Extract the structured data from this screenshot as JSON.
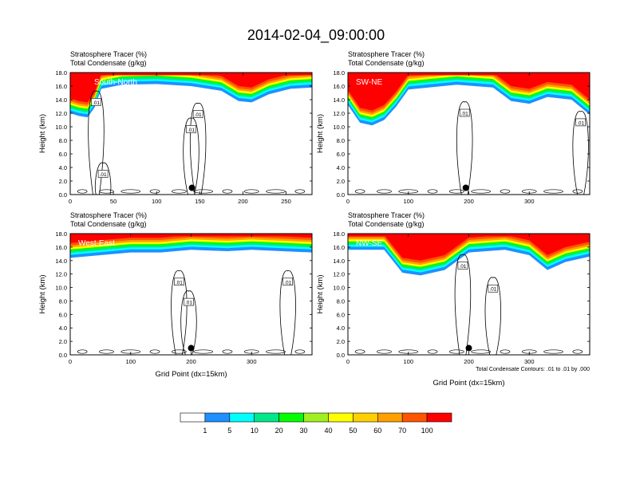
{
  "title": "2014-02-04_09:00:00",
  "panel_header": {
    "line1_label": "Stratosphere Tracer",
    "line1_unit": "(%)",
    "line2_label": "Total Condensate",
    "line2_unit": "(g/kg)"
  },
  "y_axis_label": "Height (km)",
  "x_axis_label": "Grid Point (dx=15km)",
  "contour_note": "Total Condensate Contours: .01 to .01 by .000",
  "colors": {
    "levels": [
      "#ffffff",
      "#1e90ff",
      "#00ffff",
      "#00e88a",
      "#00ff00",
      "#a0f020",
      "#ffff00",
      "#ffd000",
      "#ff9f00",
      "#ff5500",
      "#ff0000"
    ]
  },
  "colorbar": {
    "labels": [
      "1",
      "5",
      "10",
      "20",
      "30",
      "40",
      "50",
      "60",
      "70",
      "100"
    ]
  },
  "chart_data": [
    {
      "type": "heatmap",
      "name": "South-North",
      "xlim": [
        0,
        280
      ],
      "xticks": [
        0,
        50,
        100,
        150,
        200,
        250
      ],
      "ylim": [
        0,
        18
      ],
      "yticks": [
        "0.0",
        "2.0",
        "4.0",
        "6.0",
        "8.0",
        "10.0",
        "12.0",
        "14.0",
        "16.0",
        "18.0"
      ],
      "tracer_front_km": [
        [
          0,
          12.0
        ],
        [
          10,
          11.6
        ],
        [
          20,
          11.4
        ],
        [
          28,
          12.8
        ],
        [
          36,
          15.6
        ],
        [
          60,
          16.2
        ],
        [
          100,
          16.3
        ],
        [
          140,
          16.0
        ],
        [
          175,
          15.3
        ],
        [
          195,
          13.8
        ],
        [
          210,
          13.6
        ],
        [
          230,
          14.8
        ],
        [
          255,
          15.6
        ],
        [
          280,
          15.8
        ]
      ],
      "contour_labels": [
        {
          "x": 30,
          "y": 13.6,
          "text": ".01"
        },
        {
          "x": 148,
          "y": 11.8,
          "text": ".01"
        },
        {
          "x": 140,
          "y": 9.6,
          "text": ".01"
        },
        {
          "x": 38,
          "y": 3.0,
          "text": ".01"
        }
      ],
      "marker": {
        "x": 141,
        "y": 1.0
      }
    },
    {
      "type": "heatmap",
      "name": "SW-NE",
      "xlim": [
        0,
        400
      ],
      "xticks": [
        0,
        100,
        200,
        300
      ],
      "ylim": [
        0,
        18
      ],
      "yticks": [
        "0.0",
        "2.0",
        "4.0",
        "6.0",
        "8.0",
        "10.0",
        "12.0",
        "14.0",
        "16.0",
        "18.0"
      ],
      "tracer_front_km": [
        [
          0,
          13.2
        ],
        [
          20,
          10.6
        ],
        [
          40,
          10.2
        ],
        [
          60,
          11.0
        ],
        [
          80,
          13.0
        ],
        [
          100,
          15.5
        ],
        [
          180,
          16.2
        ],
        [
          240,
          15.8
        ],
        [
          270,
          13.8
        ],
        [
          300,
          13.4
        ],
        [
          330,
          14.4
        ],
        [
          370,
          14.0
        ],
        [
          400,
          11.8
        ]
      ],
      "contour_labels": [
        {
          "x": 193,
          "y": 12.0,
          "text": ".01"
        },
        {
          "x": 385,
          "y": 10.6,
          "text": ".01"
        }
      ],
      "marker": {
        "x": 195,
        "y": 1.0
      }
    },
    {
      "type": "heatmap",
      "name": "West-East",
      "xlim": [
        0,
        400
      ],
      "xticks": [
        0,
        100,
        200,
        300
      ],
      "ylim": [
        0,
        18
      ],
      "yticks": [
        "0.0",
        "2.0",
        "4.0",
        "6.0",
        "8.0",
        "10.0",
        "12.0",
        "14.0",
        "16.0",
        "18.0"
      ],
      "tracer_front_km": [
        [
          0,
          14.4
        ],
        [
          50,
          14.8
        ],
        [
          100,
          15.2
        ],
        [
          150,
          15.2
        ],
        [
          200,
          15.6
        ],
        [
          260,
          15.4
        ],
        [
          300,
          15.6
        ],
        [
          350,
          15.4
        ],
        [
          400,
          15.2
        ]
      ],
      "contour_labels": [
        {
          "x": 180,
          "y": 10.8,
          "text": ".01"
        },
        {
          "x": 196,
          "y": 7.8,
          "text": ".01"
        },
        {
          "x": 360,
          "y": 10.8,
          "text": ".01"
        }
      ],
      "marker": {
        "x": 200,
        "y": 1.0
      }
    },
    {
      "type": "heatmap",
      "name": "NW-SE",
      "xlim": [
        0,
        400
      ],
      "xticks": [
        0,
        100,
        200,
        300
      ],
      "ylim": [
        0,
        18
      ],
      "yticks": [
        "0.0",
        "2.0",
        "4.0",
        "6.0",
        "8.0",
        "10.0",
        "12.0",
        "14.0",
        "16.0",
        "18.0"
      ],
      "tracer_front_km": [
        [
          0,
          15.6
        ],
        [
          60,
          15.6
        ],
        [
          90,
          12.2
        ],
        [
          120,
          11.8
        ],
        [
          160,
          12.6
        ],
        [
          200,
          15.2
        ],
        [
          260,
          15.6
        ],
        [
          300,
          14.8
        ],
        [
          330,
          12.6
        ],
        [
          360,
          13.8
        ],
        [
          400,
          14.6
        ]
      ],
      "contour_labels": [
        {
          "x": 190,
          "y": 13.2,
          "text": ".01"
        },
        {
          "x": 240,
          "y": 9.8,
          "text": ".01"
        }
      ],
      "marker": {
        "x": 200,
        "y": 1.0
      }
    }
  ]
}
